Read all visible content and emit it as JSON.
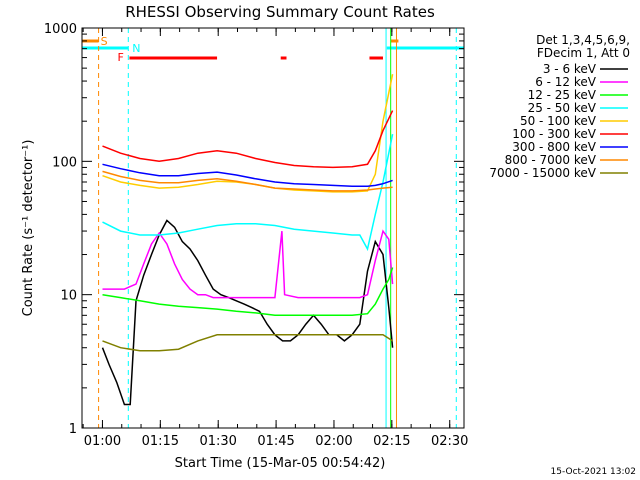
{
  "chart_data": {
    "type": "line",
    "title": "RHESSI Observing Summary Count Rates",
    "xlabel": "Start Time (15-Mar-05 00:54:42)",
    "ylabel": "Count Rate (s⁻¹ detector⁻¹)",
    "x_unit": "minutes since 00:54:42",
    "xlim": [
      0,
      99
    ],
    "ylim": [
      1,
      1000
    ],
    "y_scale": "log",
    "grid": false,
    "legend_position": "top-right",
    "x_ticks": [
      {
        "label": "01:00",
        "value": 5.3
      },
      {
        "label": "01:15",
        "value": 20.3
      },
      {
        "label": "01:30",
        "value": 35.3
      },
      {
        "label": "01:45",
        "value": 50.3
      },
      {
        "label": "02:00",
        "value": 65.3
      },
      {
        "label": "02:15",
        "value": 80.3
      },
      {
        "label": "02:30",
        "value": 95.3
      }
    ],
    "y_ticks": [
      {
        "label": "1",
        "value": 1
      },
      {
        "label": "10",
        "value": 10
      },
      {
        "label": "100",
        "value": 100
      },
      {
        "label": "1000",
        "value": 1000
      }
    ],
    "legend_header": [
      "Det 1,3,4,5,6,9,",
      "FDecim 1, Att 0"
    ],
    "series": [
      {
        "name": "3 - 6 keV",
        "color": "#000000",
        "x": [
          5.3,
          7,
          9,
          11,
          12.5,
          14,
          16,
          18,
          20,
          22,
          24,
          26,
          28,
          30,
          32,
          34,
          36,
          38,
          40,
          42,
          44,
          46,
          48,
          50,
          52,
          54,
          56,
          58,
          60,
          62,
          64,
          66,
          68,
          70,
          72,
          74,
          76,
          78,
          79.5,
          80.5
        ],
        "y": [
          4,
          3,
          2.2,
          1.5,
          1.5,
          9,
          14,
          20,
          28,
          36,
          32,
          25,
          22,
          18,
          14,
          11,
          10,
          9.5,
          9,
          8.5,
          8,
          7.5,
          6,
          5,
          4.5,
          4.5,
          5,
          6,
          7,
          6,
          5,
          5,
          4.5,
          5,
          6,
          15,
          25,
          20,
          8,
          4
        ]
      },
      {
        "name": "6 - 12 keV",
        "color": "#ff00ff",
        "x": [
          5.3,
          8,
          11,
          14,
          16,
          18,
          20,
          22,
          24,
          26,
          28,
          30,
          32,
          34,
          36,
          40,
          44,
          48,
          50,
          51.8,
          52.5,
          56,
          60,
          64,
          68,
          72,
          74,
          76,
          78,
          79.5,
          80.5
        ],
        "y": [
          11,
          11,
          11,
          12,
          17,
          24,
          29,
          24,
          17,
          13,
          11,
          10,
          10,
          9.5,
          9.5,
          9.5,
          9.5,
          9.5,
          9.5,
          30,
          10,
          9.5,
          9.5,
          9.5,
          9.5,
          9.5,
          10,
          18,
          30,
          26,
          12
        ]
      },
      {
        "name": "12 - 25 keV",
        "color": "#00ff00",
        "x": [
          5.3,
          10,
          15,
          20,
          25,
          30,
          35,
          40,
          45,
          50,
          55,
          60,
          65,
          70,
          74,
          76,
          78,
          79.5,
          80.5
        ],
        "y": [
          10,
          9.5,
          9,
          8.5,
          8.2,
          8,
          7.8,
          7.5,
          7.3,
          7,
          7,
          7,
          7,
          7,
          7.2,
          8.5,
          11,
          13,
          16
        ]
      },
      {
        "name": "25 - 50 keV",
        "color": "#00ffff",
        "x": [
          5.3,
          10,
          15,
          20,
          25,
          30,
          35,
          40,
          45,
          50,
          55,
          60,
          65,
          70,
          72,
          74,
          76,
          78,
          80.5
        ],
        "y": [
          35,
          30,
          28,
          28,
          29,
          31,
          33,
          34,
          34,
          33,
          31,
          30,
          29,
          28,
          28,
          22,
          40,
          70,
          160
        ]
      },
      {
        "name": "50 - 100 keV",
        "color": "#ffcc00",
        "x": [
          5.3,
          10,
          15,
          20,
          25,
          30,
          35,
          40,
          45,
          50,
          55,
          60,
          65,
          70,
          74,
          76,
          78,
          80.5
        ],
        "y": [
          78,
          70,
          66,
          63,
          64,
          67,
          71,
          70,
          67,
          63,
          61,
          60,
          59,
          59,
          60,
          80,
          200,
          450
        ]
      },
      {
        "name": "100 - 300 keV",
        "color": "#ff0000",
        "x": [
          5.3,
          10,
          15,
          20,
          25,
          30,
          35,
          40,
          45,
          50,
          55,
          60,
          65,
          70,
          74,
          76,
          78,
          80.5
        ],
        "y": [
          130,
          115,
          105,
          100,
          105,
          115,
          120,
          115,
          105,
          98,
          93,
          91,
          90,
          91,
          95,
          120,
          170,
          240
        ]
      },
      {
        "name": "300 - 800 keV",
        "color": "#0000ff",
        "x": [
          5.3,
          10,
          15,
          20,
          25,
          30,
          35,
          40,
          45,
          50,
          55,
          60,
          65,
          70,
          74,
          76,
          78,
          80.5
        ],
        "y": [
          95,
          88,
          82,
          78,
          78,
          81,
          83,
          79,
          74,
          70,
          68,
          67,
          66,
          65,
          65,
          66,
          68,
          72
        ]
      },
      {
        "name": "800 - 7000 keV",
        "color": "#ff8800",
        "x": [
          5.3,
          10,
          15,
          20,
          25,
          30,
          35,
          40,
          45,
          50,
          55,
          60,
          65,
          70,
          74,
          76,
          78,
          80.5
        ],
        "y": [
          84,
          77,
          72,
          69,
          69,
          72,
          74,
          71,
          67,
          63,
          62,
          61,
          60,
          60,
          61,
          62,
          63,
          64
        ]
      },
      {
        "name": "7000 - 15000 keV",
        "color": "#808000",
        "x": [
          5.3,
          10,
          15,
          20,
          25,
          30,
          35,
          40,
          45,
          50,
          55,
          60,
          65,
          70,
          74,
          76,
          78,
          80.5
        ],
        "y": [
          4.5,
          4,
          3.8,
          3.8,
          3.9,
          4.5,
          5,
          5,
          5,
          5,
          5,
          5,
          5,
          5,
          5,
          5,
          5,
          4.5
        ]
      }
    ],
    "annotations": [
      {
        "label": "S",
        "color": "#ff8800"
      },
      {
        "label": "N",
        "color": "#00ffff"
      },
      {
        "label": "F",
        "color": "#ff0000"
      }
    ],
    "saa_intervals": [
      [
        0,
        4.3
      ],
      [
        80,
        82
      ]
    ],
    "night_intervals": [
      [
        0,
        12
      ],
      [
        79,
        99
      ]
    ],
    "flare_intervals": [
      [
        12.3,
        35
      ],
      [
        51.5,
        53
      ],
      [
        74.5,
        78
      ]
    ],
    "vertical_markers": [
      {
        "x": 4.3,
        "color": "#ff8800",
        "style": "dashed"
      },
      {
        "x": 12,
        "color": "#00ffff",
        "style": "dashed"
      },
      {
        "x": 78.8,
        "color": "#00ffff",
        "style": "solid"
      },
      {
        "x": 80,
        "color": "#00ff00",
        "style": "solid"
      },
      {
        "x": 81.5,
        "color": "#ff8800",
        "style": "solid"
      },
      {
        "x": 97,
        "color": "#00ffff",
        "style": "dashed"
      }
    ]
  },
  "footer": {
    "timestamp": "15-Oct-2021 13:02"
  }
}
